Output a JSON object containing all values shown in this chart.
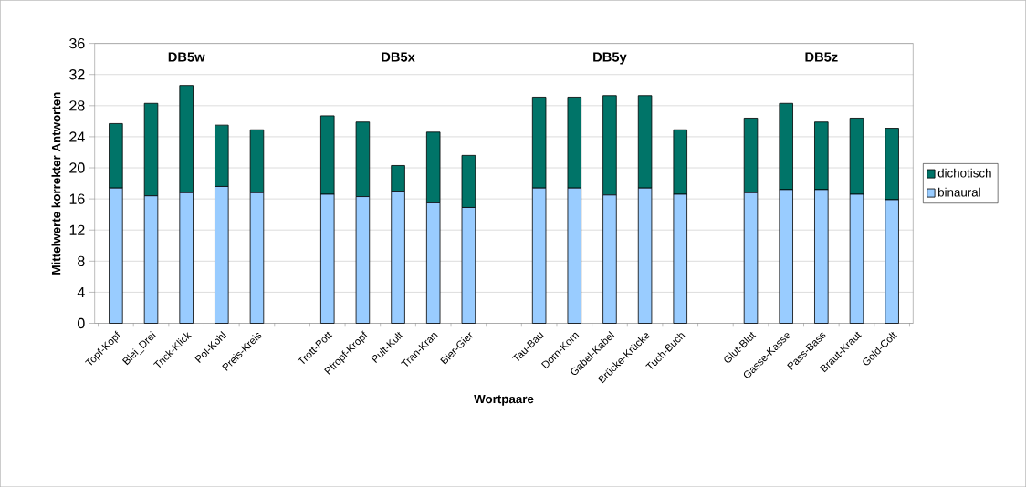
{
  "chart_data": {
    "type": "bar",
    "stacked": true,
    "xlabel": "Wortpaare",
    "ylabel": "Mittelwerte korrekter Antworten",
    "categories": [
      "Topf-Kopf",
      "Blei_Drei",
      "Trick-Klick",
      "Pol-Kohl",
      "Preis-Kreis",
      null,
      "Trott-Pott",
      "Pfropf-Kropf",
      "Pult-Kult",
      "Tran-Kran",
      "Bier-Gier",
      null,
      "Tau-Bau",
      "Dorn-Korn",
      "Gabel-Kabel",
      "Brücke-Krücke",
      "Tuch-Buch",
      null,
      "Glut-Blut",
      "Gasse-Kasse",
      "Pass-Bass",
      "Braut-Kraut",
      "Gold-Colt"
    ],
    "series": [
      {
        "name": "binaural",
        "color": "#99ccff",
        "values": [
          17.4,
          16.4,
          16.8,
          17.6,
          16.8,
          null,
          16.6,
          16.3,
          17.0,
          15.5,
          14.9,
          null,
          17.4,
          17.4,
          16.5,
          17.4,
          16.6,
          null,
          16.8,
          17.2,
          17.2,
          16.6,
          15.9
        ]
      },
      {
        "name": "dichotisch",
        "color": "#007468",
        "values": [
          8.3,
          11.9,
          13.8,
          7.9,
          8.1,
          null,
          10.1,
          9.6,
          3.3,
          9.1,
          6.7,
          null,
          11.7,
          11.7,
          12.8,
          11.9,
          8.3,
          null,
          9.6,
          11.1,
          8.7,
          9.8,
          9.2
        ]
      }
    ],
    "ylim": [
      0,
      36
    ],
    "yticks": [
      0,
      4,
      8,
      12,
      16,
      20,
      24,
      28,
      32,
      36
    ],
    "grid": "y",
    "legend": "right",
    "annotations": [
      "DB5w",
      "DB5x",
      "DB5y",
      "DB5z"
    ]
  }
}
